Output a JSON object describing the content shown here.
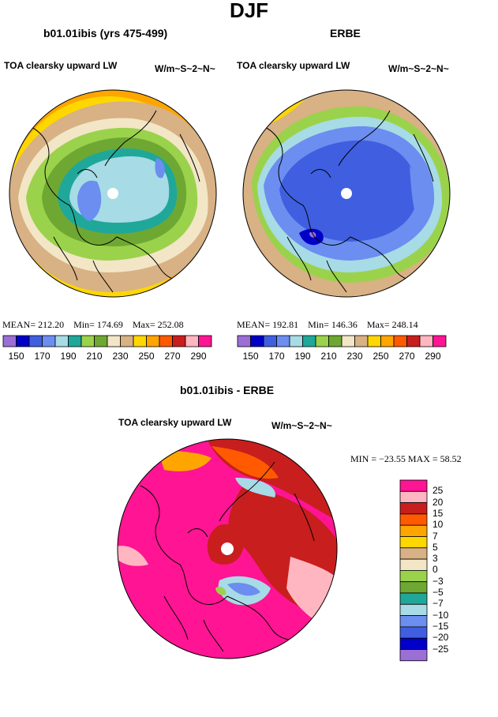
{
  "title": "DJF",
  "panels": [
    {
      "heading": "b01.01ibis (yrs 475-499)",
      "field_label": "TOA clearsky upward LW",
      "units": "W/m~S~2~N~",
      "mean_label": "MEAN=",
      "mean": "212.20",
      "min_label": "Min=",
      "min": "174.69",
      "max_label": "Max=",
      "max": "252.08"
    },
    {
      "heading": "ERBE",
      "field_label": "TOA clearsky upward LW",
      "units": "W/m~S~2~N~",
      "mean_label": "MEAN=",
      "mean": "192.81",
      "min_label": "Min=",
      "min": "146.36",
      "max_label": "Max=",
      "max": "248.14"
    }
  ],
  "diff": {
    "heading": "b01.01ibis - ERBE",
    "field_label": "TOA clearsky upward LW",
    "units": "W/m~S~2~N~",
    "stats_text": "MIN = −23.55  MAX =   58.52"
  },
  "chart_data": [
    {
      "type": "heatmap",
      "projection": "north-polar-stereographic",
      "title": "b01.01ibis (yrs 475-499)",
      "variable": "TOA clearsky upward LW",
      "units": "W/m^2",
      "mean": 212.2,
      "min": 174.69,
      "max": 252.08,
      "colorbar_ticks": [
        "150",
        "170",
        "190",
        "210",
        "230",
        "250",
        "270",
        "290"
      ],
      "colorbar_colors": [
        "#9b6fd6",
        "#0000c8",
        "#3f5fe0",
        "#6b8ef0",
        "#a7dbe6",
        "#1fa89a",
        "#9bd24c",
        "#6ea832",
        "#f2e6c6",
        "#d8b184",
        "#ffd700",
        "#ffa500",
        "#ff5a00",
        "#c81e1e",
        "#ffb6c1",
        "#ff1493"
      ]
    },
    {
      "type": "heatmap",
      "projection": "north-polar-stereographic",
      "title": "ERBE",
      "variable": "TOA clearsky upward LW",
      "units": "W/m^2",
      "mean": 192.81,
      "min": 146.36,
      "max": 248.14,
      "colorbar_ticks": [
        "150",
        "170",
        "190",
        "210",
        "230",
        "250",
        "270",
        "290"
      ],
      "colorbar_colors": [
        "#9b6fd6",
        "#0000c8",
        "#3f5fe0",
        "#6b8ef0",
        "#a7dbe6",
        "#1fa89a",
        "#9bd24c",
        "#6ea832",
        "#f2e6c6",
        "#d8b184",
        "#ffd700",
        "#ffa500",
        "#ff5a00",
        "#c81e1e",
        "#ffb6c1",
        "#ff1493"
      ]
    },
    {
      "type": "heatmap",
      "projection": "north-polar-stereographic",
      "title": "b01.01ibis - ERBE",
      "variable": "TOA clearsky upward LW",
      "units": "W/m^2",
      "min": -23.55,
      "max": 58.52,
      "colorbar_ticks": [
        "25",
        "20",
        "15",
        "10",
        "7",
        "5",
        "3",
        "0",
        "−3",
        "−5",
        "−7",
        "−10",
        "−15",
        "−20",
        "−25"
      ],
      "colorbar_colors": [
        "#ff1493",
        "#ffb6c1",
        "#c81e1e",
        "#ff5a00",
        "#ffa500",
        "#ffd700",
        "#d8b184",
        "#f2e6c6",
        "#9bd24c",
        "#6ea832",
        "#1fa89a",
        "#a7dbe6",
        "#6b8ef0",
        "#3f5fe0",
        "#0000c8",
        "#9b6fd6"
      ]
    }
  ]
}
